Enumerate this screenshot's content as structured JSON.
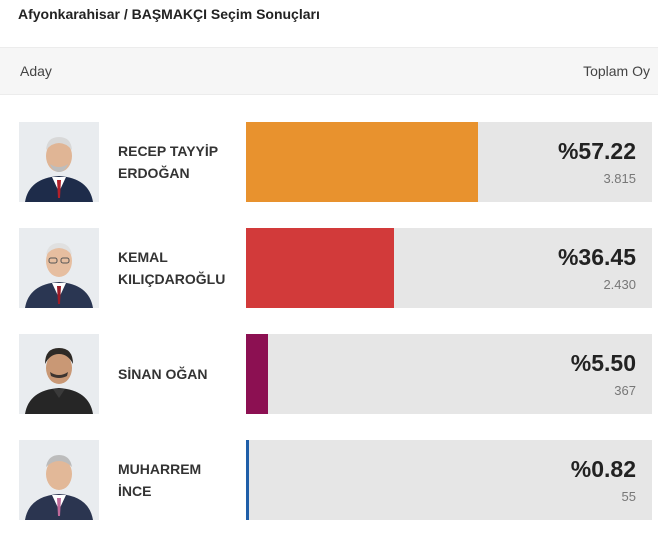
{
  "title": "Afyonkarahisar / BAŞMAKÇI Seçim Sonuçları",
  "header": {
    "left": "Aday",
    "right": "Toplam Oy"
  },
  "candidates": [
    {
      "name_line1": "RECEP TAYYİP",
      "name_line2": "ERDOĞAN",
      "percent_label": "%57.22",
      "percent": 57.22,
      "votes": "3.815",
      "color": "#e8922e",
      "photo": "candidate-photo"
    },
    {
      "name_line1": "KEMAL",
      "name_line2": "KILIÇDAROĞLU",
      "percent_label": "%36.45",
      "percent": 36.45,
      "votes": "2.430",
      "color": "#d23a3a",
      "photo": "candidate-photo"
    },
    {
      "name_line1": "SİNAN OĞAN",
      "name_line2": "",
      "percent_label": "%5.50",
      "percent": 5.5,
      "votes": "367",
      "color": "#8c1052",
      "photo": "candidate-photo"
    },
    {
      "name_line1": "MUHARREM",
      "name_line2": "İNCE",
      "percent_label": "%0.82",
      "percent": 0.82,
      "votes": "55",
      "color": "#1f5ea8",
      "photo": "candidate-photo"
    }
  ]
}
